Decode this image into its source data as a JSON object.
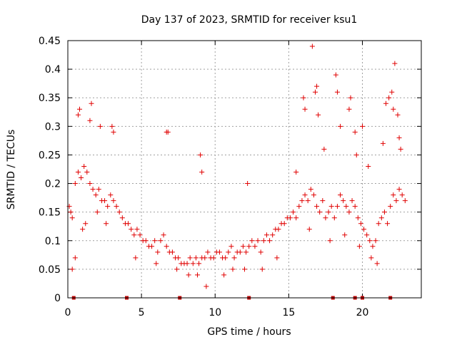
{
  "chart_data": {
    "type": "scatter",
    "title": "Day 137 of 2023, SRMTID for receiver ksu1",
    "xlabel": "GPS time / hours",
    "ylabel": "SRMTID / TECUs",
    "xlim": [
      0,
      24
    ],
    "ylim": [
      0,
      0.45
    ],
    "xticks": [
      0,
      5,
      10,
      15,
      20
    ],
    "xtick_labels": [
      "0",
      "5",
      "10",
      "15",
      "20"
    ],
    "yticks": [
      0,
      0.05,
      0.1,
      0.15,
      0.2,
      0.25,
      0.3,
      0.35,
      0.4,
      0.45
    ],
    "ytick_labels": [
      "0",
      "0.05",
      "0.1",
      "0.15",
      "0.2",
      "0.25",
      "0.3",
      "0.35",
      "0.4",
      "0.45"
    ],
    "grid": true,
    "marker": "+",
    "color": "#e00000",
    "gap_color": "#c00000",
    "series": [
      {
        "name": "SRMTID",
        "x": [
          0.1,
          0.2,
          0.3,
          0.5,
          0.7,
          0.9,
          1.1,
          1.3,
          1.5,
          1.7,
          1.9,
          2.1,
          2.3,
          2.5,
          2.7,
          2.9,
          3.1,
          3.3,
          3.5,
          3.7,
          3.9,
          4.1,
          4.3,
          4.5,
          4.7,
          4.9,
          5.1,
          5.3,
          5.5,
          5.7,
          5.9,
          6.1,
          6.3,
          6.5,
          6.7,
          6.9,
          7.1,
          7.3,
          7.5,
          7.7,
          7.9,
          8.1,
          8.3,
          8.5,
          8.7,
          8.9,
          9.1,
          9.3,
          9.5,
          9.7,
          9.9,
          10.1,
          10.3,
          10.5,
          10.7,
          10.9,
          11.1,
          11.3,
          11.5,
          11.7,
          11.9,
          12.1,
          12.3,
          12.5,
          12.7,
          12.9,
          13.1,
          13.3,
          13.5,
          13.7,
          13.9,
          14.1,
          14.3,
          14.5,
          14.7,
          14.9,
          15.1,
          15.3,
          15.5,
          15.7,
          15.9,
          16.1,
          16.3,
          16.5,
          16.7,
          16.9,
          17.1,
          17.3,
          17.5,
          17.7,
          17.9,
          18.1,
          18.3,
          18.5,
          18.7,
          18.9,
          19.1,
          19.3,
          19.5,
          19.7,
          19.9,
          20.1,
          20.3,
          20.5,
          20.7,
          20.9,
          21.1,
          21.3,
          21.5,
          21.7,
          21.9,
          22.1,
          22.3,
          22.5,
          22.7,
          22.9,
          0.7,
          0.8,
          1.5,
          1.6,
          2.2,
          3.0,
          3.1,
          6.7,
          6.8,
          9.0,
          9.1,
          12.2,
          15.5,
          16.0,
          16.1,
          16.6,
          16.8,
          16.9,
          17.0,
          17.4,
          18.2,
          18.3,
          18.5,
          19.1,
          19.2,
          19.5,
          19.6,
          20.0,
          20.4,
          21.4,
          21.6,
          21.8,
          22.0,
          22.1,
          22.2,
          22.4,
          22.5,
          22.6,
          0.3,
          0.5,
          1.0,
          1.2,
          2.0,
          2.6,
          4.6,
          6.0,
          7.4,
          8.2,
          8.8,
          9.4,
          10.6,
          11.2,
          12.0,
          13.2,
          14.2,
          16.4,
          17.8,
          18.8,
          19.8,
          20.6,
          21.0
        ],
        "y": [
          0.16,
          0.15,
          0.14,
          0.2,
          0.22,
          0.21,
          0.23,
          0.22,
          0.2,
          0.19,
          0.18,
          0.19,
          0.17,
          0.17,
          0.16,
          0.18,
          0.17,
          0.16,
          0.15,
          0.14,
          0.13,
          0.13,
          0.12,
          0.11,
          0.12,
          0.11,
          0.1,
          0.1,
          0.09,
          0.09,
          0.1,
          0.08,
          0.1,
          0.11,
          0.09,
          0.08,
          0.08,
          0.07,
          0.07,
          0.06,
          0.06,
          0.06,
          0.07,
          0.06,
          0.07,
          0.06,
          0.07,
          0.07,
          0.08,
          0.07,
          0.07,
          0.08,
          0.08,
          0.07,
          0.07,
          0.08,
          0.09,
          0.07,
          0.08,
          0.08,
          0.09,
          0.08,
          0.09,
          0.1,
          0.09,
          0.1,
          0.08,
          0.1,
          0.11,
          0.1,
          0.11,
          0.12,
          0.12,
          0.13,
          0.13,
          0.14,
          0.14,
          0.15,
          0.14,
          0.16,
          0.17,
          0.18,
          0.17,
          0.19,
          0.18,
          0.16,
          0.15,
          0.17,
          0.14,
          0.15,
          0.16,
          0.14,
          0.16,
          0.18,
          0.17,
          0.16,
          0.15,
          0.17,
          0.16,
          0.14,
          0.13,
          0.12,
          0.11,
          0.1,
          0.09,
          0.1,
          0.13,
          0.14,
          0.15,
          0.13,
          0.16,
          0.18,
          0.17,
          0.19,
          0.18,
          0.17,
          0.32,
          0.33,
          0.31,
          0.34,
          0.3,
          0.3,
          0.29,
          0.29,
          0.29,
          0.25,
          0.22,
          0.2,
          0.22,
          0.35,
          0.33,
          0.44,
          0.36,
          0.37,
          0.32,
          0.26,
          0.39,
          0.36,
          0.3,
          0.33,
          0.35,
          0.29,
          0.25,
          0.3,
          0.23,
          0.27,
          0.34,
          0.35,
          0.36,
          0.33,
          0.41,
          0.32,
          0.28,
          0.26,
          0.05,
          0.07,
          0.12,
          0.13,
          0.15,
          0.13,
          0.07,
          0.06,
          0.05,
          0.04,
          0.04,
          0.02,
          0.04,
          0.05,
          0.05,
          0.05,
          0.07,
          0.12,
          0.1,
          0.11,
          0.09,
          0.07,
          0.06
        ]
      }
    ],
    "gaps_at_zero": [
      0.4,
      4.0,
      7.6,
      12.3,
      18.0,
      19.5,
      20.0,
      21.9
    ]
  }
}
